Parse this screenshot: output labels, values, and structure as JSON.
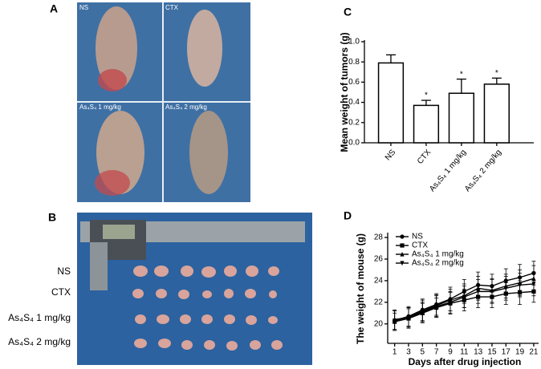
{
  "figure": {
    "panel_a": {
      "letter": "A",
      "labels": [
        "NS",
        "CTX",
        "As₄S₄ 1 mg/kg",
        "As₄S₄ 2 mg/kg"
      ]
    },
    "panel_b": {
      "letter": "B",
      "row_labels": [
        "NS",
        "CTX",
        "As₄S₄ 1 mg/kg",
        "As₄S₄ 2 mg/kg"
      ]
    }
  },
  "chart_data": [
    {
      "type": "bar",
      "panel_label": "C",
      "y_label": "Mean weight of tumors (g)",
      "categories": [
        "NS",
        "CTX",
        "As₄S₄ 1 mg/kg",
        "As₄S₄ 2 mg/kg"
      ],
      "values": [
        0.79,
        0.37,
        0.49,
        0.58
      ],
      "errors": [
        0.08,
        0.05,
        0.14,
        0.06
      ],
      "significance": [
        null,
        "*",
        "*",
        "*"
      ],
      "color": "#ffffff",
      "ylim": [
        0,
        1.0
      ],
      "yticks": [
        {
          "value": 0,
          "label": "0.0"
        },
        0.2,
        0.4,
        0.6,
        0.8,
        {
          "value": 1.0,
          "label": "1.0"
        }
      ]
    },
    {
      "type": "line",
      "panel_label": "D",
      "y_label": "The weight of mouse (g)",
      "x_label": "Days after drug injection",
      "x": [
        1,
        3,
        5,
        7,
        9,
        11,
        13,
        15,
        17,
        19,
        21
      ],
      "series": [
        {
          "name": "NS",
          "color": "#000000",
          "marker": "circle",
          "values": [
            20.3,
            20.7,
            21.3,
            21.8,
            22.3,
            23.0,
            23.6,
            23.5,
            24.0,
            24.3,
            24.7
          ],
          "errors": [
            0.9,
            0.9,
            1.0,
            1.0,
            1.1,
            1.1,
            1.2,
            1.1,
            1.1,
            1.2,
            1.1
          ]
        },
        {
          "name": "CTX",
          "color": "#000000",
          "marker": "square",
          "values": [
            20.2,
            20.5,
            21.0,
            21.5,
            21.9,
            22.2,
            22.5,
            22.5,
            22.8,
            22.9,
            23.0
          ],
          "errors": [
            0.8,
            0.9,
            0.9,
            0.9,
            1.0,
            1.0,
            1.0,
            1.0,
            1.0,
            1.1,
            1.0
          ]
        },
        {
          "name": "As₄S₄ 1 mg/kg",
          "color": "#000000",
          "marker": "triangle-up",
          "values": [
            20.4,
            20.6,
            21.2,
            21.7,
            22.2,
            22.6,
            23.3,
            23.1,
            23.5,
            23.8,
            24.2
          ],
          "errors": [
            0.9,
            0.9,
            1.0,
            1.0,
            1.0,
            1.1,
            1.1,
            1.1,
            1.1,
            1.2,
            1.2
          ]
        },
        {
          "name": "As₄S₄ 2 mg/kg",
          "color": "#000000",
          "marker": "triangle-down",
          "values": [
            20.3,
            20.6,
            21.1,
            21.6,
            22.0,
            22.5,
            23.0,
            23.0,
            23.3,
            23.6,
            23.7
          ],
          "errors": [
            0.9,
            0.9,
            0.9,
            1.0,
            1.0,
            1.0,
            1.1,
            1.1,
            1.1,
            1.1,
            1.1
          ]
        }
      ],
      "xlim": [
        0,
        21.7
      ],
      "xticks": [
        1,
        3,
        5,
        7,
        9,
        11,
        13,
        15,
        17,
        19,
        21
      ],
      "ylim": [
        18.2,
        28.3
      ],
      "yticks": [
        20,
        22,
        24,
        26,
        28
      ],
      "legend": "top-left"
    }
  ]
}
